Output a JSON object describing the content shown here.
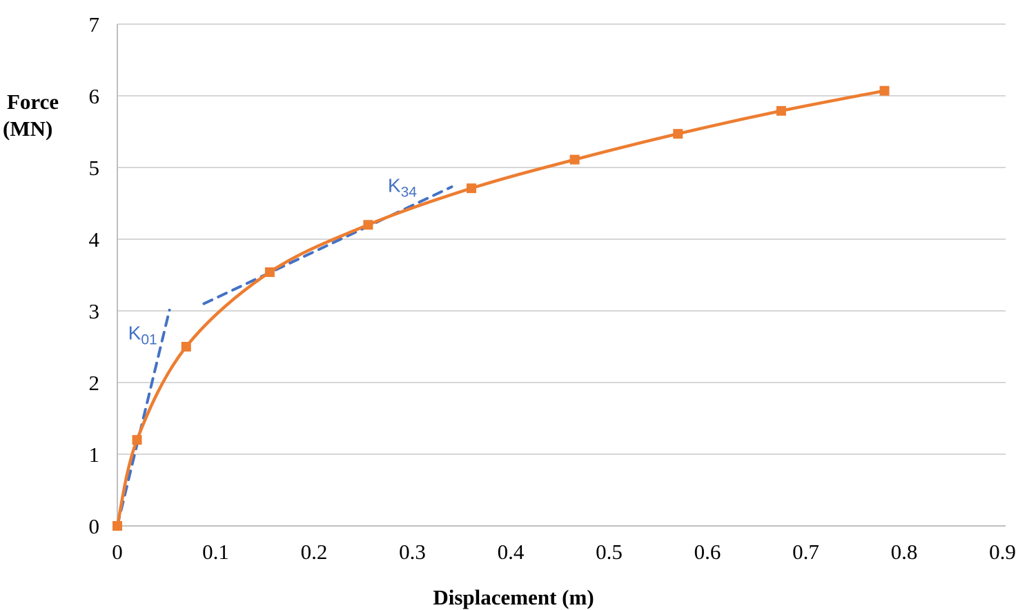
{
  "chart_data": {
    "type": "line",
    "title": "",
    "xlabel": "Displacement (m)",
    "ylabel_lines": [
      "Force",
      "(MN)"
    ],
    "xlim": [
      0,
      0.9
    ],
    "ylim": [
      0,
      7
    ],
    "x_tick_values": [
      0,
      0.1,
      0.2,
      0.3,
      0.4,
      0.5,
      0.6,
      0.7,
      0.8,
      0.9
    ],
    "x_tick_labels": [
      "0",
      "0.1",
      "0.2",
      "0.3",
      "0.4",
      "0.5",
      "0.6",
      "0.7",
      "0.8",
      "0.9"
    ],
    "y_tick_values": [
      0,
      1,
      2,
      3,
      4,
      5,
      6,
      7
    ],
    "y_tick_labels": [
      "0",
      "1",
      "2",
      "3",
      "4",
      "5",
      "6",
      "7"
    ],
    "grid": "horizontal",
    "legend": "none",
    "series": [
      {
        "name": "force-displacement-curve",
        "color": "#ED7D31",
        "marker": "square",
        "smooth": true,
        "x": [
          0,
          0.02,
          0.07,
          0.155,
          0.255,
          0.36,
          0.465,
          0.57,
          0.675,
          0.78
        ],
        "y": [
          0,
          1.2,
          2.5,
          3.54,
          4.2,
          4.71,
          5.11,
          5.47,
          5.79,
          6.07
        ]
      }
    ],
    "annotations": [
      {
        "name": "K01",
        "label_main": "K",
        "label_sub": "01",
        "color": "#4472C4",
        "style": "dashed",
        "line": {
          "x1": 0,
          "y1": 0,
          "x2": 0.053,
          "y2": 3.01
        },
        "label_pos": {
          "x": 0.011,
          "y": 2.6
        }
      },
      {
        "name": "K34",
        "label_main": "K",
        "label_sub": "34",
        "color": "#4472C4",
        "style": "dashed",
        "line": {
          "x1": 0.088,
          "y1": 3.1,
          "x2": 0.34,
          "y2": 4.73
        },
        "label_pos": {
          "x": 0.275,
          "y": 4.66
        }
      }
    ],
    "colors": {
      "series": "#ED7D31",
      "tangent": "#4472C4",
      "gridline": "#D6D6D6",
      "axis": "#BFBFBF",
      "text": "#000000"
    }
  }
}
